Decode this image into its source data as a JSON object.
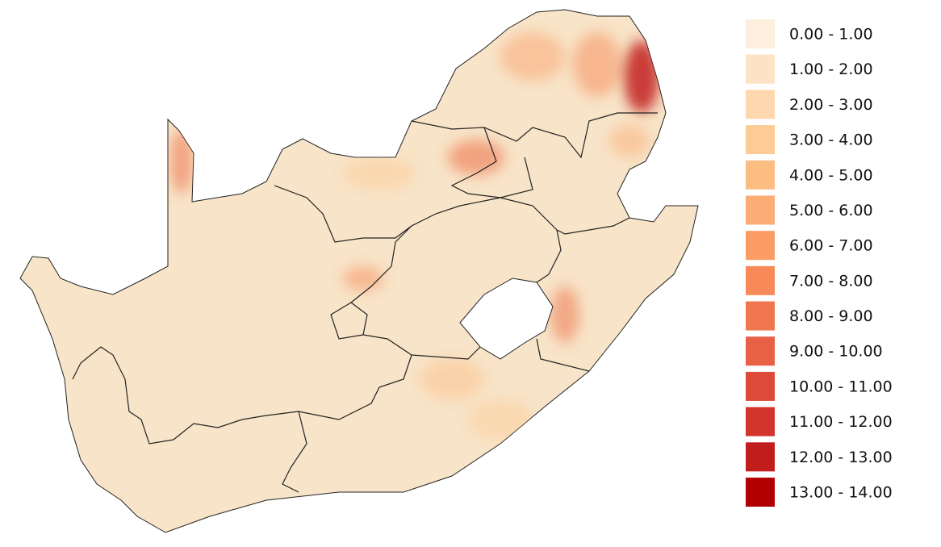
{
  "legend": {
    "items": [
      {
        "label": "0.00 - 1.00",
        "color": "#fdeedd"
      },
      {
        "label": "1.00 - 2.00",
        "color": "#fde3c6"
      },
      {
        "label": "2.00 - 3.00",
        "color": "#fdd7ad"
      },
      {
        "label": "3.00 - 4.00",
        "color": "#fdcb95"
      },
      {
        "label": "4.00 - 5.00",
        "color": "#fcbd83"
      },
      {
        "label": "5.00 - 6.00",
        "color": "#fcad75"
      },
      {
        "label": "6.00 - 7.00",
        "color": "#fb9c64"
      },
      {
        "label": "7.00 - 8.00",
        "color": "#f78a58"
      },
      {
        "label": "8.00 - 9.00",
        "color": "#ef764f"
      },
      {
        "label": "9.00 - 10.00",
        "color": "#e86146"
      },
      {
        "label": "10.00 - 11.00",
        "color": "#de4a38"
      },
      {
        "label": "11.00 - 12.00",
        "color": "#d1352b"
      },
      {
        "label": "12.00 - 13.00",
        "color": "#c21d1d"
      },
      {
        "label": "13.00 - 14.00",
        "color": "#b20000"
      }
    ]
  }
}
